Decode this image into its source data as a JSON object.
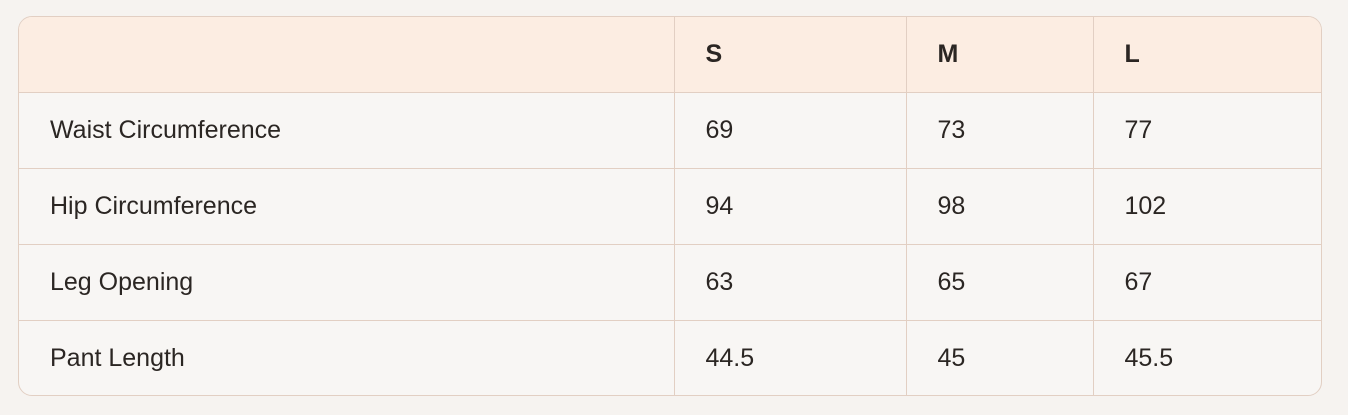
{
  "table": {
    "headers": [
      "",
      "S",
      "M",
      "L"
    ],
    "rows": [
      [
        "Waist Circumference",
        "69",
        "73",
        "77"
      ],
      [
        "Hip Circumference",
        "94",
        "98",
        "102"
      ],
      [
        "Leg Opening",
        "63",
        "65",
        "67"
      ],
      [
        "Pant Length",
        "44.5",
        "45",
        "45.5"
      ]
    ]
  },
  "colors": {
    "header_bg": "#fcede2",
    "border": "#e2cfc3",
    "body_bg": "#f8f6f4"
  }
}
